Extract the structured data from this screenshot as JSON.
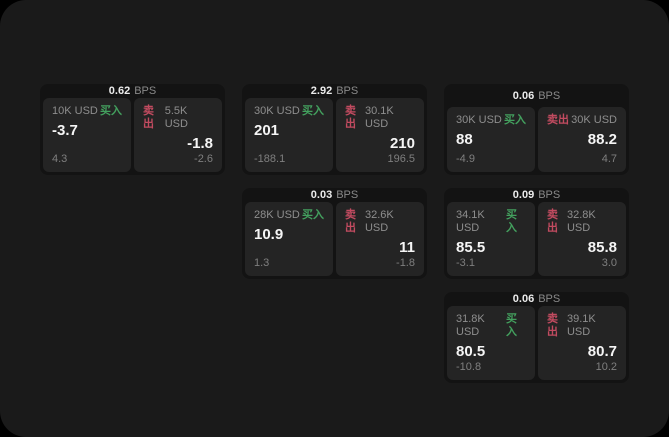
{
  "labels": {
    "bps_unit": "BPS",
    "buy": "买入",
    "sell": "卖出"
  },
  "colors": {
    "page_background": "#1a1a1a",
    "card_background": "#131313",
    "panel_background": "#242424",
    "buy_accent": "#43a05e",
    "sell_accent": "#c24b60",
    "primary_text": "#f5f5f5",
    "secondary_text": "#8e8e8e"
  },
  "cards": [
    {
      "bps": "0.62",
      "buy": {
        "amount": "10K USD",
        "value": "-3.7",
        "delta": "4.3"
      },
      "sell": {
        "amount": "5.5K USD",
        "value": "-1.8",
        "delta": "-2.6"
      }
    },
    {
      "bps": "2.92",
      "buy": {
        "amount": "30K USD",
        "value": "201",
        "delta": "-188.1"
      },
      "sell": {
        "amount": "30.1K USD",
        "value": "210",
        "delta": "196.5"
      }
    },
    {
      "bps": "0.06",
      "buy": {
        "amount": "30K USD",
        "value": "88",
        "delta": "-4.9"
      },
      "sell": {
        "amount": "30K USD",
        "value": "88.2",
        "delta": "4.7"
      }
    },
    {
      "bps": "0.03",
      "buy": {
        "amount": "28K USD",
        "value": "10.9",
        "delta": "1.3"
      },
      "sell": {
        "amount": "32.6K USD",
        "value": "11",
        "delta": "-1.8"
      }
    },
    {
      "bps": "0.09",
      "buy": {
        "amount": "34.1K USD",
        "value": "85.5",
        "delta": "-3.1"
      },
      "sell": {
        "amount": "32.8K USD",
        "value": "85.8",
        "delta": "3.0"
      }
    },
    {
      "bps": "0.06",
      "buy": {
        "amount": "31.8K USD",
        "value": "80.5",
        "delta": "-10.8"
      },
      "sell": {
        "amount": "39.1K USD",
        "value": "80.7",
        "delta": "10.2"
      }
    }
  ]
}
